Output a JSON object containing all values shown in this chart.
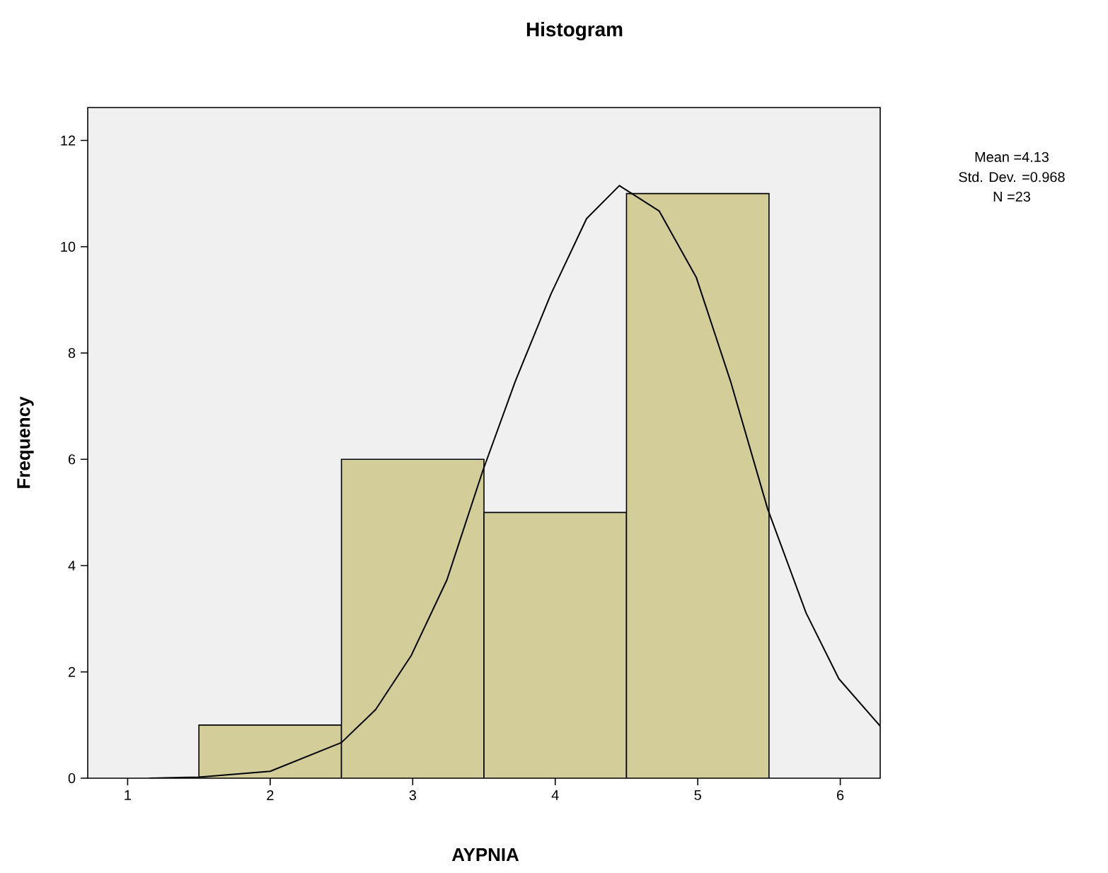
{
  "chart_data": {
    "type": "histogram",
    "title": "Histogram",
    "xlabel": "AYPNIA",
    "ylabel": "Frequency",
    "bins": [
      1.5,
      2.5,
      3.5,
      4.5,
      5.5
    ],
    "values": [
      1,
      6,
      5,
      11
    ],
    "color": "#d3ce99",
    "series": [
      {
        "type": "line",
        "color": "#000000",
        "x": [
          1.15,
          1.5,
          2.0,
          2.5,
          2.74,
          2.99,
          3.24,
          3.49,
          3.72,
          3.97,
          4.22,
          4.45,
          4.73,
          4.99,
          5.23,
          5.49,
          5.76,
          5.99,
          6.28
        ],
        "values": [
          0,
          0.02,
          0.13,
          0.67,
          1.29,
          2.31,
          3.73,
          5.77,
          7.47,
          9.11,
          10.53,
          11.15,
          10.67,
          9.42,
          7.47,
          5.07,
          3.11,
          1.87,
          0.98
        ]
      }
    ],
    "xlim": [
      0.72,
      6.28
    ],
    "ylim": [
      0,
      12.62
    ],
    "xticks": [
      1,
      2,
      3,
      4,
      5,
      6
    ],
    "yticks": [
      0,
      2,
      4,
      6,
      8,
      10,
      12
    ],
    "annotations": [
      "Mean =4.13",
      "Std. Dev. =0.968",
      "N =23"
    ]
  }
}
